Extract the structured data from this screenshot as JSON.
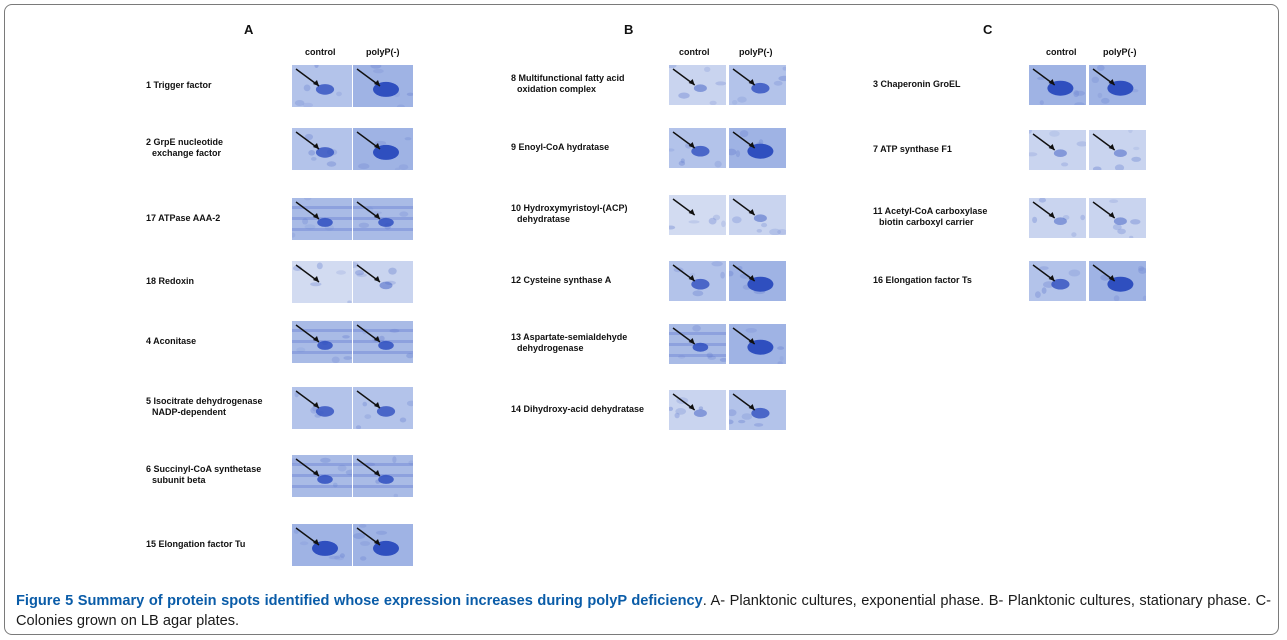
{
  "panels": [
    {
      "letter": "A",
      "control_label": "control",
      "polyp_label": "polyP(-)",
      "rows": [
        {
          "lines": [
            "1 Trigger factor"
          ],
          "tone_control": "medium",
          "tone_polyp": "strong"
        },
        {
          "lines": [
            "2 GrpE nucleotide",
            "exchange factor"
          ],
          "tone_control": "medium",
          "tone_polyp": "strong"
        },
        {
          "lines": [
            "17 ATPase AAA-2"
          ],
          "tone_control": "banded",
          "tone_polyp": "banded"
        },
        {
          "lines": [
            "18 Redoxin"
          ],
          "tone_control": "blank",
          "tone_polyp": "faint"
        },
        {
          "lines": [
            "4 Aconitase"
          ],
          "tone_control": "banded",
          "tone_polyp": "banded"
        },
        {
          "lines": [
            "5 Isocitrate dehydrogenase",
            "NADP-dependent"
          ],
          "tone_control": "medium",
          "tone_polyp": "medium"
        },
        {
          "lines": [
            "6 Succinyl-CoA synthetase",
            "subunit beta"
          ],
          "tone_control": "banded",
          "tone_polyp": "banded"
        },
        {
          "lines": [
            "15 Elongation factor Tu"
          ],
          "tone_control": "strong",
          "tone_polyp": "strong"
        }
      ]
    },
    {
      "letter": "B",
      "control_label": "control",
      "polyp_label": "polyP(-)",
      "rows": [
        {
          "lines": [
            "8 Multifunctional fatty acid",
            "oxidation complex"
          ],
          "tone_control": "faint",
          "tone_polyp": "medium"
        },
        {
          "lines": [
            "9 Enoyl-CoA hydratase"
          ],
          "tone_control": "medium",
          "tone_polyp": "strong"
        },
        {
          "lines": [
            "10 Hydroxymyristoyl-(ACP)",
            "dehydratase"
          ],
          "tone_control": "blank",
          "tone_polyp": "faint"
        },
        {
          "lines": [
            "12 Cysteine synthase A"
          ],
          "tone_control": "medium",
          "tone_polyp": "strong"
        },
        {
          "lines": [
            "13 Aspartate-semialdehyde",
            "dehydrogenase"
          ],
          "tone_control": "banded",
          "tone_polyp": "strong"
        },
        {
          "lines": [
            "14 Dihydroxy-acid dehydratase"
          ],
          "tone_control": "faint",
          "tone_polyp": "medium"
        }
      ]
    },
    {
      "letter": "C",
      "control_label": "control",
      "polyp_label": "polyP(-)",
      "rows": [
        {
          "lines": [
            "3 Chaperonin GroEL"
          ],
          "tone_control": "strong",
          "tone_polyp": "strong"
        },
        {
          "lines": [
            "7 ATP synthase F1"
          ],
          "tone_control": "faint",
          "tone_polyp": "faint"
        },
        {
          "lines": [
            "11 Acetyl-CoA carboxylase",
            "biotin carboxyl carrier"
          ],
          "tone_control": "faint",
          "tone_polyp": "faint"
        },
        {
          "lines": [
            "16 Elongation factor Ts"
          ],
          "tone_control": "medium",
          "tone_polyp": "strong"
        }
      ]
    }
  ],
  "caption": {
    "title": "Figure 5 Summary of protein spots identified whose expression increases during polyP deficiency",
    "body": ". A- Planktonic cultures, exponential phase. B- Planktonic cultures, stationary phase. C- Colonies grown on LB agar plates."
  },
  "colors": {
    "gel_light": "#d4ddf3",
    "gel_mid": "#a9bbe6",
    "gel_dark": "#3f5fc8",
    "caption_title": "#0a5ca8"
  }
}
